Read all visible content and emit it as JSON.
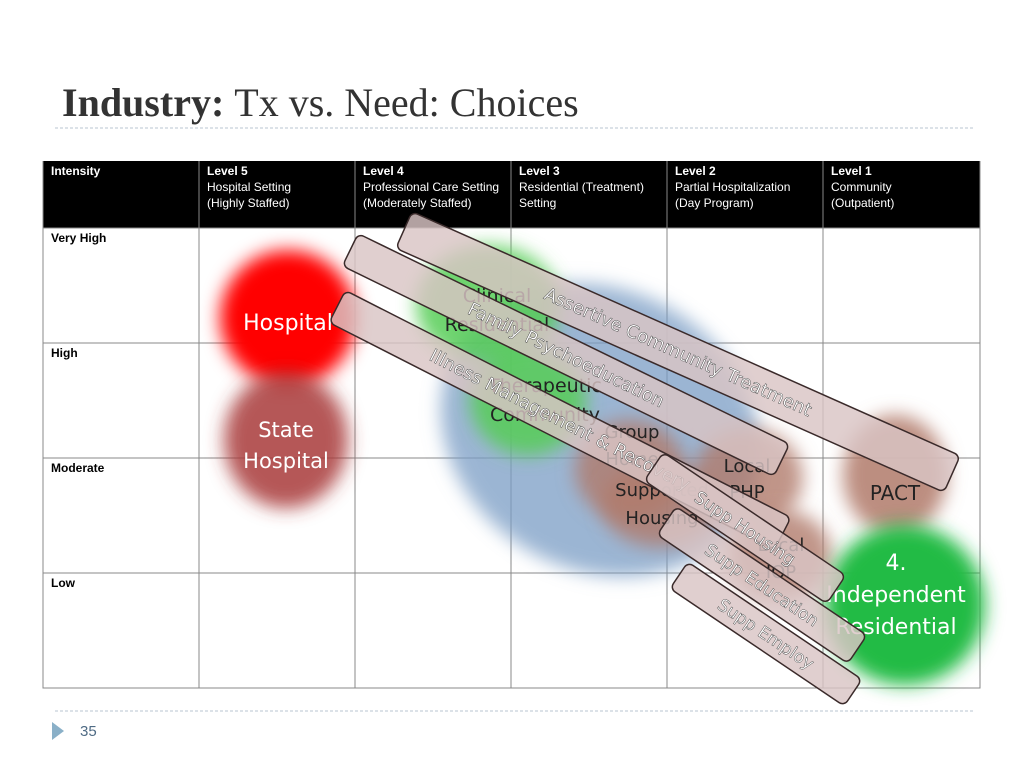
{
  "title": {
    "bold": "Industry:",
    "rest": "Tx vs. Need: Choices"
  },
  "table": {
    "header": [
      [
        "Intensity"
      ],
      [
        "Level 5",
        "Hospital Setting",
        "(Highly Staffed)"
      ],
      [
        "Level 4",
        "Professional Care Setting",
        "(Moderately Staffed)"
      ],
      [
        "Level 3",
        "Residential (Treatment)",
        "Setting"
      ],
      [
        "Level 2",
        "Partial Hospitalization",
        "(Day Program)"
      ],
      [
        "Level 1",
        "Community",
        "(Outpatient)"
      ]
    ],
    "rows": [
      "Very High",
      "High",
      "Moderate",
      "Low"
    ]
  },
  "blobs": [
    {
      "lines": [
        "Hospital"
      ]
    },
    {
      "lines": [
        "State",
        "Hospital"
      ]
    },
    {
      "lines": [
        "Clinical",
        "Residential"
      ]
    },
    {
      "lines": [
        "Therapeutic",
        "Community"
      ]
    },
    {
      "lines": [
        "Group",
        "Home"
      ]
    },
    {
      "lines": [
        "Supported",
        "Housing"
      ]
    },
    {
      "lines": [
        "Local",
        "PHP"
      ]
    },
    {
      "lines": [
        "Local",
        "IOP"
      ]
    },
    {
      "lines": [
        "PACT"
      ]
    },
    {
      "lines": [
        "4.",
        "Independent",
        "Residential"
      ]
    }
  ],
  "bands": [
    "Assertive Community Treatment",
    "Family Psychoeducation",
    "Illness Management & Recovery",
    "Supp Housing",
    "Supp Education",
    "Supp Employ"
  ],
  "page_number": "35"
}
